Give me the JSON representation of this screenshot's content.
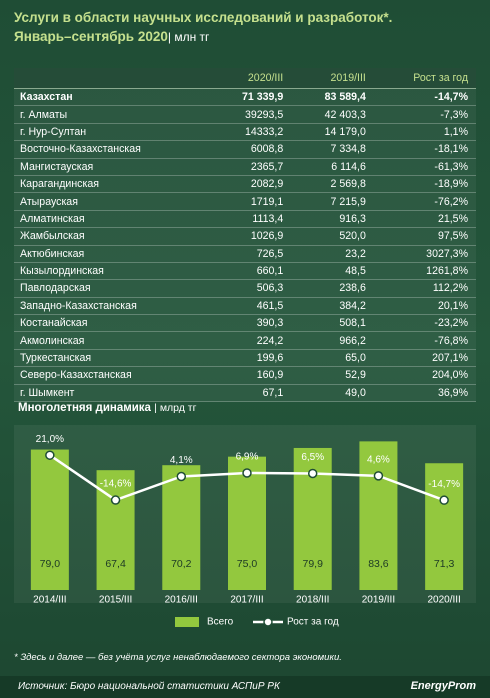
{
  "header": {
    "title": "Услуги в области научных исследований и разработок*.",
    "subtitle": "Январь–сентябрь 2020",
    "unit": "| млн тг"
  },
  "table": {
    "columns": [
      "",
      "2020/III",
      "2019/III",
      "Рост за год"
    ],
    "rows": [
      [
        "Казахстан",
        "71 339,9",
        "83 589,4",
        "-14,7%"
      ],
      [
        "г. Алматы",
        "39293,5",
        "42 403,3",
        "-7,3%"
      ],
      [
        "г. Нур-Султан",
        "14333,2",
        "14 179,0",
        "1,1%"
      ],
      [
        "Восточно-Казахстанская",
        "6008,8",
        "7 334,8",
        "-18,1%"
      ],
      [
        "Мангистауская",
        "2365,7",
        "6 114,6",
        "-61,3%"
      ],
      [
        "Карагандинская",
        "2082,9",
        "2 569,8",
        "-18,9%"
      ],
      [
        "Атырауская",
        "1719,1",
        "7 215,9",
        "-76,2%"
      ],
      [
        "Алматинская",
        "1113,4",
        "916,3",
        "21,5%"
      ],
      [
        "Жамбылская",
        "1026,9",
        "520,0",
        "97,5%"
      ],
      [
        "Актюбинская",
        "726,5",
        "23,2",
        "3027,3%"
      ],
      [
        "Кызылординская",
        "660,1",
        "48,5",
        "1261,8%"
      ],
      [
        "Павлодарская",
        "506,3",
        "238,6",
        "112,2%"
      ],
      [
        "Западно-Казахстанская",
        "461,5",
        "384,2",
        "20,1%"
      ],
      [
        "Костанайская",
        "390,3",
        "508,1",
        "-23,2%"
      ],
      [
        "Акмолинская",
        "224,2",
        "966,2",
        "-76,8%"
      ],
      [
        "Туркестанская",
        "199,6",
        "65,0",
        "207,1%"
      ],
      [
        "Северо-Казахстанская",
        "160,9",
        "52,9",
        "204,0%"
      ],
      [
        "г. Шымкент",
        "67,1",
        "49,0",
        "36,9%"
      ]
    ]
  },
  "chart_data": {
    "type": "bar",
    "title": "Многолетняя динамика",
    "unit": "| млрд тг",
    "categories": [
      "2014/III",
      "2015/III",
      "2016/III",
      "2017/III",
      "2018/III",
      "2019/III",
      "2020/III"
    ],
    "ylim": [
      0,
      90
    ],
    "y2lim": [
      -86,
      41
    ],
    "series": [
      {
        "name": "Всего",
        "type": "bar",
        "color": "#93c83e",
        "values": [
          79.0,
          67.4,
          70.2,
          75.0,
          79.9,
          83.6,
          71.3
        ],
        "value_labels": [
          "79,0",
          "67,4",
          "70,2",
          "75,0",
          "79,9",
          "83,6",
          "71,3"
        ]
      },
      {
        "name": "Рост за год",
        "type": "line",
        "axis": "y2",
        "color": "#ffffff",
        "values": [
          21.0,
          -14.6,
          4.1,
          6.9,
          6.5,
          4.6,
          -14.7
        ],
        "value_labels": [
          "21,0%",
          "-14,6%",
          "4,1%",
          "6,9%",
          "6,5%",
          "4,6%",
          "-14,7%"
        ]
      }
    ]
  },
  "footnote": "* Здесь и далее — без учёта услуг ненаблюдаемого сектора экономики.",
  "source": "Источник: Бюро национальной статистики АСПиР РК",
  "logo": "EnergyProm"
}
